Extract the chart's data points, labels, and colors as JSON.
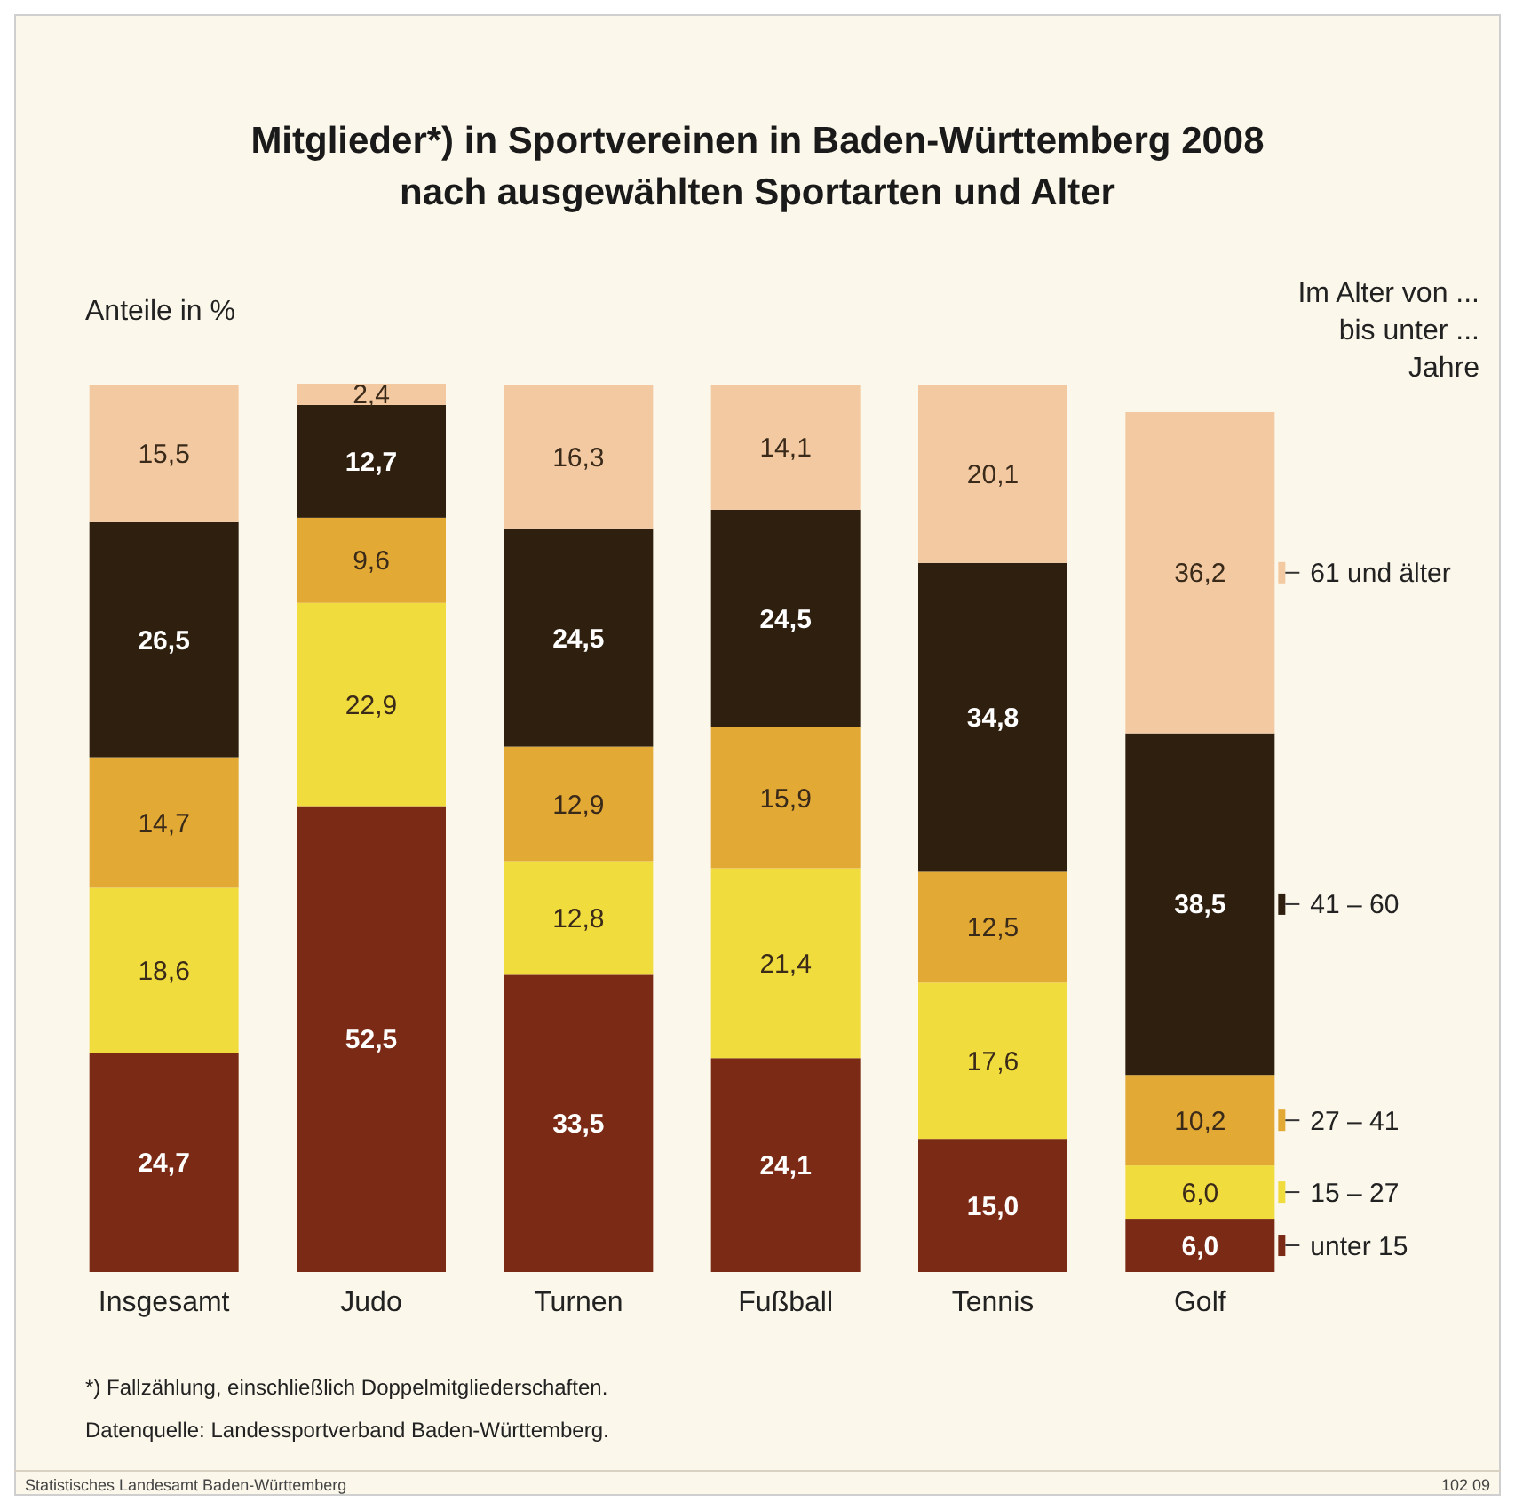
{
  "chart_data": {
    "type": "bar",
    "stacked": true,
    "title": "Mitglieder*) in Sportvereinen in Baden-Württemberg 2008",
    "subtitle": "nach ausgewählten Sportarten und Alter",
    "ylabel": "Anteile in %",
    "legend_title": "Im Alter von ... bis unter ... Jahre",
    "legend": "right",
    "categories": [
      "Insgesamt",
      "Judo",
      "Turnen",
      "Fußball",
      "Tennis",
      "Golf"
    ],
    "series": [
      {
        "name": "unter 15",
        "color": "#7b2a15",
        "values": [
          24.7,
          52.5,
          33.5,
          24.1,
          15.0,
          6.0
        ],
        "value_labels": [
          "24,7",
          "52,5",
          "33,5",
          "24,1",
          "15,0",
          "6,0"
        ]
      },
      {
        "name": "15 – 27",
        "color": "#f1dc3e",
        "values": [
          18.6,
          22.9,
          12.8,
          21.4,
          17.6,
          6.0
        ],
        "value_labels": [
          "18,6",
          "22,9",
          "12,8",
          "21,4",
          "17,6",
          "6,0"
        ]
      },
      {
        "name": "27 – 41",
        "color": "#e2a935",
        "values": [
          14.7,
          9.6,
          12.9,
          15.9,
          12.5,
          10.2
        ],
        "value_labels": [
          "14,7",
          "9,6",
          "12,9",
          "15,9",
          "12,5",
          "10,2"
        ]
      },
      {
        "name": "41 – 60",
        "color": "#2f1f0f",
        "values": [
          26.5,
          12.7,
          24.5,
          24.5,
          34.8,
          38.5
        ],
        "value_labels": [
          "26,5",
          "12,7",
          "24,5",
          "24,5",
          "34,8",
          "38,5"
        ]
      },
      {
        "name": "61 und älter",
        "color": "#f3c9a2",
        "values": [
          15.5,
          2.4,
          16.3,
          14.1,
          20.1,
          36.2
        ],
        "value_labels": [
          "15,5",
          "2,4",
          "16,3",
          "14,1",
          "20,1",
          "36,2"
        ]
      }
    ],
    "annotations": [
      "*) Fallzählung, einschließlich Doppelmitgliederschaften.",
      "Datenquelle: Landessportverband Baden-Württemberg.",
      "Statistisches Landesamt Baden-Württemberg",
      "102 09"
    ]
  }
}
